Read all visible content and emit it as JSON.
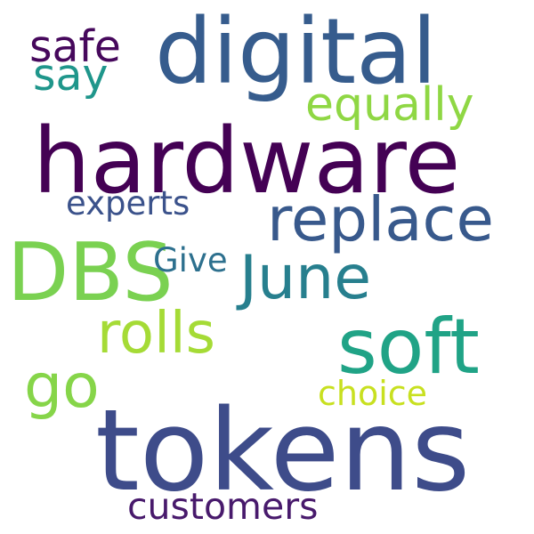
{
  "background_color": "#ffffff",
  "words": {
    "digital": {
      "text": "digital",
      "color": "#365c8d"
    },
    "safe": {
      "text": "safe",
      "color": "#46085c"
    },
    "say": {
      "text": "say",
      "color": "#1f968b"
    },
    "equally": {
      "text": "equally",
      "color": "#8fd744"
    },
    "hardware": {
      "text": "hardware",
      "color": "#440154"
    },
    "experts": {
      "text": "experts",
      "color": "#3b528b"
    },
    "replace": {
      "text": "replace",
      "color": "#38598c"
    },
    "DBS": {
      "text": "DBS",
      "color": "#7ad151"
    },
    "Give": {
      "text": "Give",
      "color": "#2d708e"
    },
    "June": {
      "text": "June",
      "color": "#277f8e"
    },
    "rolls": {
      "text": "rolls",
      "color": "#a5db36"
    },
    "soft": {
      "text": "soft",
      "color": "#20a386"
    },
    "go": {
      "text": "go",
      "color": "#86d549"
    },
    "choice": {
      "text": "choice",
      "color": "#c8e020"
    },
    "tokens": {
      "text": "tokens",
      "color": "#3e4c8a"
    },
    "customers": {
      "text": "customers",
      "color": "#481a6c"
    }
  }
}
